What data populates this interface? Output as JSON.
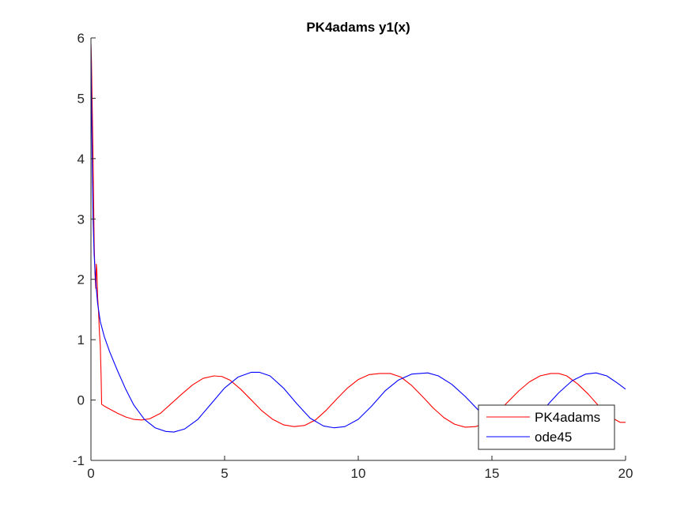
{
  "chart_data": {
    "type": "line",
    "title": "PK4adams y1(x)",
    "xlabel": "",
    "ylabel": "",
    "xlim": [
      0,
      20
    ],
    "ylim": [
      -1,
      6
    ],
    "xticks": [
      0,
      5,
      10,
      15,
      20
    ],
    "yticks": [
      -1,
      0,
      1,
      2,
      3,
      4,
      5,
      6
    ],
    "grid": false,
    "legend_position": "bottom-right",
    "series": [
      {
        "name": "PK4adams",
        "color": "#ff0000",
        "x": [
          0,
          0.02,
          0.05,
          0.08,
          0.1,
          0.12,
          0.15,
          0.18,
          0.2,
          0.22,
          0.25,
          0.28,
          0.3,
          0.32,
          0.35,
          0.38,
          0.4,
          0.5,
          0.7,
          1.0,
          1.3,
          1.6,
          1.9,
          2.2,
          2.6,
          3.0,
          3.4,
          3.8,
          4.2,
          4.6,
          4.9,
          5.2,
          5.6,
          6.0,
          6.4,
          6.8,
          7.2,
          7.6,
          8.0,
          8.4,
          8.8,
          9.2,
          9.6,
          10.0,
          10.4,
          10.8,
          11.2,
          11.6,
          12.0,
          12.4,
          12.8,
          13.2,
          13.6,
          14.0,
          14.4,
          14.8,
          15.2,
          15.6,
          16.0,
          16.4,
          16.8,
          17.2,
          17.5,
          17.8,
          18.2,
          18.6,
          19.0,
          19.4,
          19.8,
          20.0
        ],
        "y": [
          5.9,
          5.6,
          4.8,
          4.0,
          3.3,
          2.6,
          2.1,
          1.85,
          2.25,
          2.15,
          1.7,
          1.5,
          1.3,
          1.1,
          0.9,
          0.4,
          -0.07,
          -0.1,
          -0.15,
          -0.22,
          -0.28,
          -0.32,
          -0.33,
          -0.31,
          -0.22,
          -0.06,
          0.1,
          0.25,
          0.36,
          0.4,
          0.39,
          0.33,
          0.18,
          0.0,
          -0.18,
          -0.32,
          -0.41,
          -0.44,
          -0.42,
          -0.33,
          -0.17,
          0.02,
          0.2,
          0.34,
          0.42,
          0.44,
          0.44,
          0.38,
          0.24,
          0.06,
          -0.13,
          -0.29,
          -0.4,
          -0.45,
          -0.44,
          -0.36,
          -0.21,
          -0.03,
          0.15,
          0.3,
          0.4,
          0.44,
          0.44,
          0.4,
          0.27,
          0.1,
          -0.1,
          -0.27,
          -0.37,
          -0.37
        ]
      },
      {
        "name": "ode45",
        "color": "#0000ff",
        "x": [
          0,
          0.02,
          0.05,
          0.08,
          0.12,
          0.18,
          0.25,
          0.35,
          0.5,
          0.7,
          1.0,
          1.3,
          1.6,
          2.0,
          2.4,
          2.8,
          3.1,
          3.5,
          4.0,
          4.5,
          5.0,
          5.5,
          6.0,
          6.3,
          6.7,
          7.2,
          7.7,
          8.2,
          8.7,
          9.1,
          9.5,
          10.0,
          10.5,
          11.0,
          11.5,
          12.0,
          12.6,
          13.0,
          13.5,
          14.0,
          14.5,
          15.0,
          15.5,
          16.0,
          16.5,
          17.0,
          17.5,
          18.0,
          18.5,
          18.9,
          19.3,
          19.7,
          20.0
        ],
        "y": [
          5.9,
          5.0,
          3.8,
          3.0,
          2.4,
          1.95,
          1.6,
          1.3,
          1.05,
          0.8,
          0.48,
          0.18,
          -0.08,
          -0.32,
          -0.46,
          -0.52,
          -0.53,
          -0.48,
          -0.32,
          -0.06,
          0.2,
          0.38,
          0.46,
          0.46,
          0.4,
          0.2,
          -0.06,
          -0.3,
          -0.43,
          -0.46,
          -0.44,
          -0.32,
          -0.1,
          0.15,
          0.33,
          0.43,
          0.45,
          0.4,
          0.26,
          0.06,
          -0.17,
          -0.35,
          -0.44,
          -0.44,
          -0.32,
          -0.12,
          0.12,
          0.32,
          0.43,
          0.45,
          0.4,
          0.28,
          0.18
        ]
      }
    ]
  }
}
